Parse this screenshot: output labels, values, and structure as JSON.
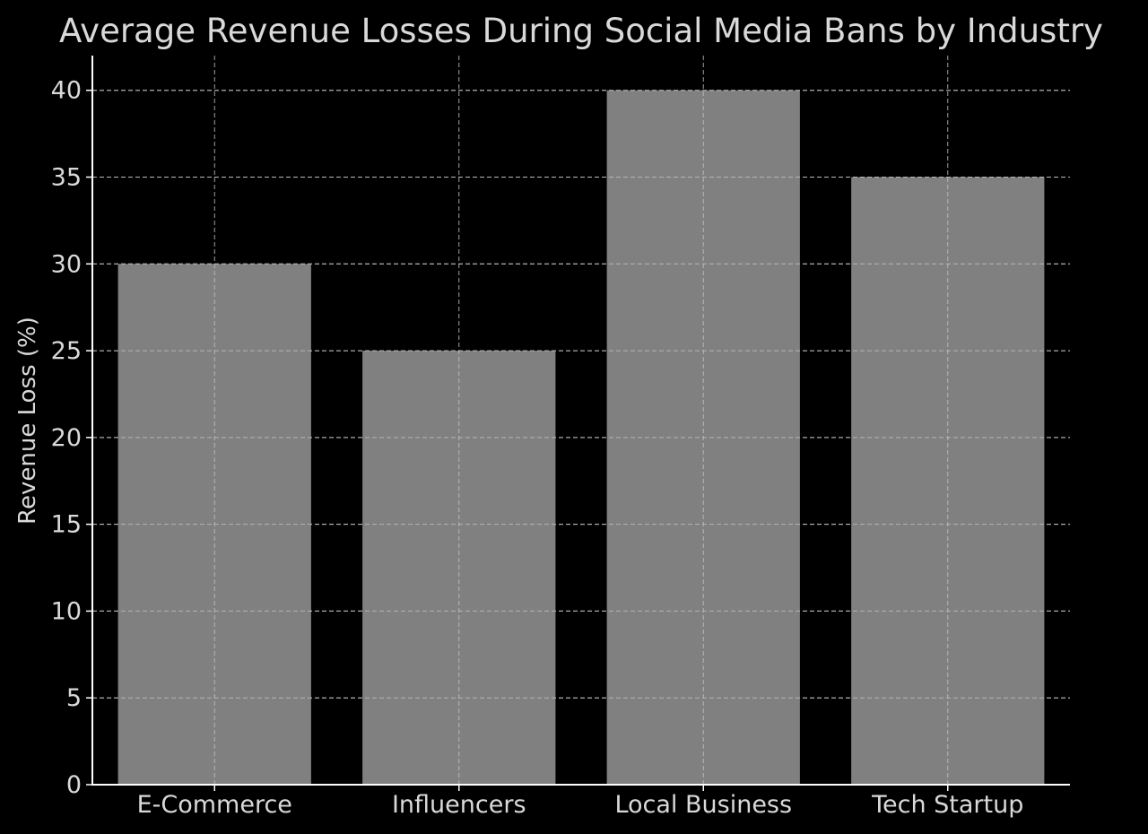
{
  "chart_data": {
    "type": "bar",
    "title": "Average Revenue Losses During Social Media Bans by Industry",
    "xlabel": "",
    "ylabel": "Revenue Loss (%)",
    "categories": [
      "E-Commerce",
      "Influencers",
      "Local Business",
      "Tech Startup"
    ],
    "values": [
      30,
      25,
      40,
      35
    ],
    "ylim": [
      0,
      42
    ],
    "yticks": [
      0,
      5,
      10,
      15,
      20,
      25,
      30,
      35,
      40
    ],
    "grid": true,
    "bar_color": "#808080",
    "background_color": "#000000",
    "text_color": "#d9d9d9"
  }
}
